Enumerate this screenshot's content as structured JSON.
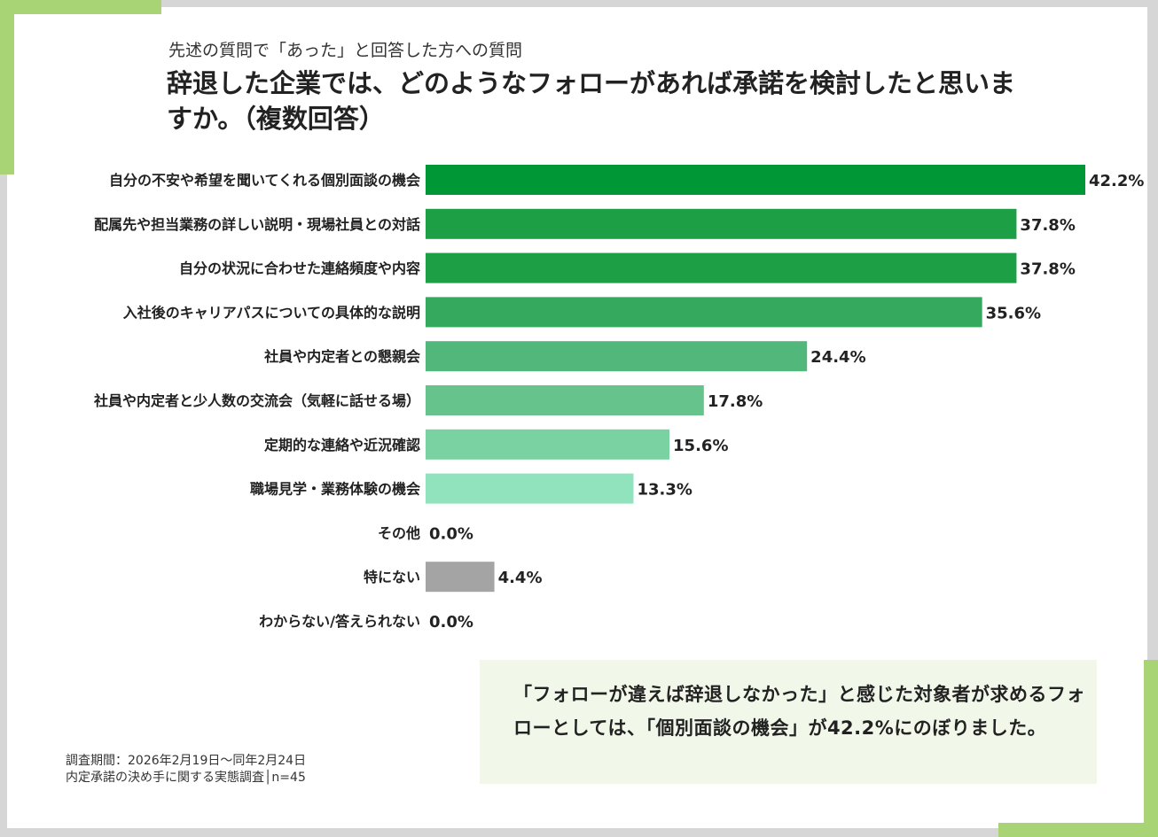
{
  "header": {
    "subtitle": "先述の質問で「あった」と回答した方への質問",
    "title": "辞退した企業では、どのようなフォローがあれば承諾を検討したと思いますか。（複数回答）"
  },
  "chart_data": {
    "type": "bar",
    "orientation": "horizontal",
    "title": "辞退した企業では、どのようなフォローがあれば承諾を検討したと思いますか。（複数回答）",
    "unit": "%",
    "xlim": [
      0,
      42.2
    ],
    "categories": [
      "自分の不安や希望を聞いてくれる個別面談の機会",
      "配属先や担当業務の詳しい説明・現場社員との対話",
      "自分の状況に合わせた連絡頻度や内容",
      "入社後のキャリアパスについての具体的な説明",
      "社員や内定者との懇親会",
      "社員や内定者と少人数の交流会（気軽に話せる場）",
      "定期的な連絡や近況確認",
      "職場見学・業務体験の機会",
      "その他",
      "特にない",
      "わからない/答えられない"
    ],
    "values": [
      42.2,
      37.8,
      37.8,
      35.6,
      24.4,
      17.8,
      15.6,
      13.3,
      0.0,
      4.4,
      0.0
    ],
    "value_labels": [
      "42.2%",
      "37.8%",
      "37.8%",
      "35.6%",
      "24.4%",
      "17.8%",
      "15.6%",
      "13.3%",
      "0.0%",
      "4.4%",
      "0.0%"
    ],
    "bar_colors": [
      "#009736",
      "#1c9f45",
      "#1c9f45",
      "#35a95e",
      "#52b77a",
      "#66c38b",
      "#7ad2a2",
      "#91e3be",
      "#cccccc",
      "#a4a4a4",
      "#cccccc"
    ]
  },
  "footnote": {
    "period": "調査期間：2026年2月19日～同年2月24日",
    "survey": "内定承諾の決め手に関する実態調査│n=45"
  },
  "summary": {
    "text": "「フォローが違えば辞退しなかった」と感じた対象者が求めるフォローとしては、「個別面談の機会」が42.2%にのぼりました。"
  }
}
